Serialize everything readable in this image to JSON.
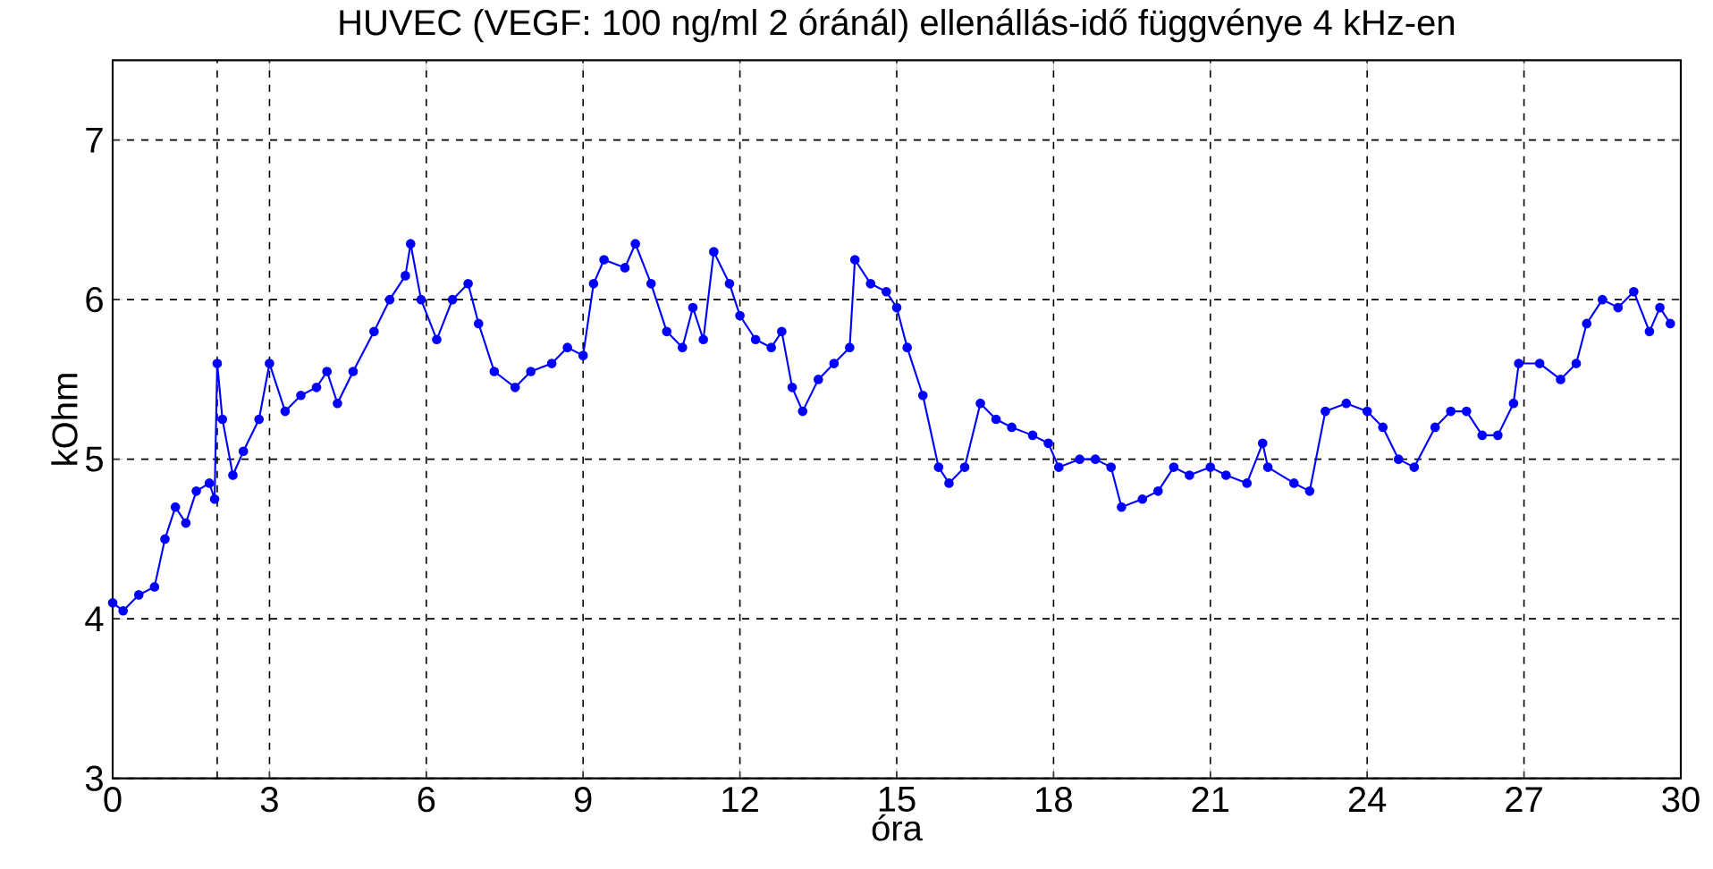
{
  "chart_data": {
    "type": "line",
    "title": "HUVEC (VEGF: 100 ng/ml 2 óránál) ellenállás-idő függvénye 4 kHz-en",
    "xlabel": "óra",
    "ylabel": "kOhm",
    "x": [
      0,
      0.2,
      0.5,
      0.8,
      1.0,
      1.2,
      1.4,
      1.6,
      1.85,
      1.95,
      2.0,
      2.1,
      2.3,
      2.5,
      2.8,
      3.0,
      3.3,
      3.6,
      3.9,
      4.1,
      4.3,
      4.6,
      5.0,
      5.3,
      5.6,
      5.7,
      5.9,
      6.2,
      6.5,
      6.8,
      7.0,
      7.3,
      7.7,
      8.0,
      8.4,
      8.7,
      9.0,
      9.2,
      9.4,
      9.8,
      10.0,
      10.3,
      10.6,
      10.9,
      11.1,
      11.3,
      11.5,
      11.8,
      12.0,
      12.3,
      12.6,
      12.8,
      13.0,
      13.2,
      13.5,
      13.8,
      14.1,
      14.2,
      14.5,
      14.8,
      15.0,
      15.2,
      15.5,
      15.8,
      16.0,
      16.3,
      16.6,
      16.9,
      17.2,
      17.6,
      17.9,
      18.1,
      18.5,
      18.8,
      19.1,
      19.3,
      19.7,
      20.0,
      20.3,
      20.6,
      21.0,
      21.3,
      21.7,
      22.0,
      22.1,
      22.6,
      22.9,
      23.2,
      23.6,
      24.0,
      24.3,
      24.6,
      24.9,
      25.3,
      25.6,
      25.9,
      26.2,
      26.5,
      26.8,
      26.9,
      27.3,
      27.7,
      28.0,
      28.2,
      28.5,
      28.8,
      29.1,
      29.4,
      29.6,
      29.8
    ],
    "series": [
      {
        "color": "#0000ff",
        "values": [
          4.1,
          4.05,
          4.15,
          4.2,
          4.5,
          4.7,
          4.6,
          4.8,
          4.85,
          4.75,
          5.6,
          5.25,
          4.9,
          5.05,
          5.25,
          5.6,
          5.3,
          5.4,
          5.45,
          5.55,
          5.35,
          5.55,
          5.8,
          6.0,
          6.15,
          6.35,
          6.0,
          5.75,
          6.0,
          6.1,
          5.85,
          5.55,
          5.45,
          5.55,
          5.6,
          5.7,
          5.65,
          6.1,
          6.25,
          6.2,
          6.35,
          6.1,
          5.8,
          5.7,
          5.95,
          5.75,
          6.3,
          6.1,
          5.9,
          5.75,
          5.7,
          5.8,
          5.45,
          5.3,
          5.5,
          5.6,
          5.7,
          6.25,
          6.1,
          6.05,
          5.95,
          5.7,
          5.4,
          4.95,
          4.85,
          4.95,
          5.35,
          5.25,
          5.2,
          5.15,
          5.1,
          4.95,
          5.0,
          5.0,
          4.95,
          4.7,
          4.75,
          4.8,
          4.95,
          4.9,
          4.95,
          4.9,
          4.85,
          5.1,
          4.95,
          4.85,
          4.8,
          5.3,
          5.35,
          5.3,
          5.2,
          5.0,
          4.95,
          5.2,
          5.3,
          5.3,
          5.15,
          5.15,
          5.35,
          5.6,
          5.6,
          5.5,
          5.6,
          5.85,
          6.0,
          5.95,
          6.05,
          5.8,
          5.95,
          5.85
        ]
      }
    ],
    "xlim": [
      0,
      30
    ],
    "ylim": [
      3,
      7.5
    ],
    "xticks": [
      0,
      3,
      6,
      9,
      12,
      15,
      18,
      21,
      24,
      27,
      30
    ],
    "yticks": [
      3,
      4,
      5,
      6,
      7
    ],
    "grid": true,
    "marker": "circle",
    "line_style": "solid",
    "ref_lines": [
      {
        "axis": "x",
        "value": 2,
        "color": "#000000",
        "line_style": "dashed"
      }
    ]
  }
}
